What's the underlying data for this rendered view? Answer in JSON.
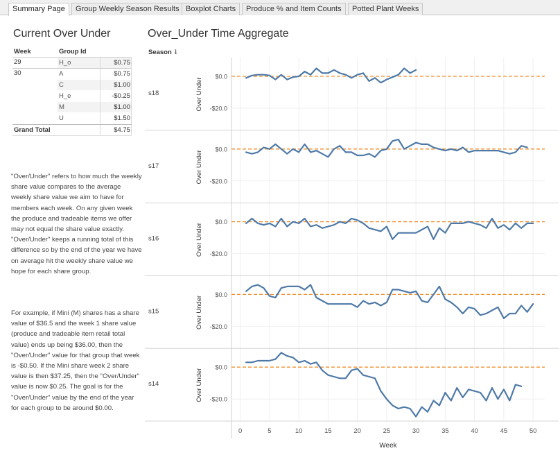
{
  "tabs": [
    {
      "label": "Summary Page",
      "active": true
    },
    {
      "label": "Group Weekly Season Results",
      "active": false
    },
    {
      "label": "Boxplot Charts",
      "active": false
    },
    {
      "label": "Produce % and Item Counts",
      "active": false
    },
    {
      "label": "Potted Plant Weeks",
      "active": false
    }
  ],
  "left_panel": {
    "title": "Current Over Under",
    "table": {
      "headers": {
        "week": "Week",
        "group": "Group Id"
      },
      "rows": [
        {
          "week": "29",
          "group": "H_o",
          "value": "$0.75"
        },
        {
          "week": "30",
          "group": "A",
          "value": "$0.75"
        },
        {
          "week": "",
          "group": "C",
          "value": "$1.00"
        },
        {
          "week": "",
          "group": "H_e",
          "value": "-$0.25"
        },
        {
          "week": "",
          "group": "M",
          "value": "$1.00"
        },
        {
          "week": "",
          "group": "U",
          "value": "$1.50"
        }
      ],
      "grand_total_label": "Grand Total",
      "grand_total_value": "$4.75"
    },
    "description_1": "\"Over/Under\" refers to how much the weekly share value compares to the average weekly share value we aim to have for members each week. On any given week the produce and tradeable items we offer may not equal the share value exactly. \"Over/Under\" keeps a running total of this difference so by the end of the year we have on average hit the weekly share value we hope for each share group.",
    "description_2": "For example, if Mini (M) shares has a share value of $36.5 and the week 1 share value (produce and tradeable item retail total value) ends up being $36.00, then the \"Over/Under\" value for that group that week is -$0.50. If the Mini share week 2 share value is then $37.25, then the \"Over/Under\" value is now $0.25. The goal is for the \"Over/Under\" value by the end of the year for each group to be around $0.00."
  },
  "chart_panel": {
    "title": "Over_Under Time Aggregate",
    "season_header": "Season",
    "info_icon": "info-icon"
  },
  "chart_data": {
    "type": "line",
    "title": "Over_Under Time Aggregate",
    "xlabel": "Week",
    "ylabel": "Over Under",
    "xlim": [
      -1.5,
      52
    ],
    "x_ticks": [
      0,
      5,
      10,
      15,
      20,
      25,
      30,
      35,
      40,
      45,
      50
    ],
    "y_ticks": [
      0,
      -20
    ],
    "y_tick_labels": [
      "$0.0",
      "-$20.0"
    ],
    "reference_line": 0,
    "line_color": "#4e79a7",
    "ref_color": "#f28e2b",
    "panels": [
      {
        "season": "s18",
        "ylim": [
          -30,
          12
        ],
        "x": [
          1,
          2,
          3,
          4,
          5,
          6,
          7,
          8,
          9,
          10,
          11,
          12,
          13,
          14,
          15,
          16,
          17,
          18,
          19,
          20,
          21,
          22,
          23,
          24,
          25,
          26,
          27,
          28,
          29,
          30
        ],
        "y": [
          -1,
          0.5,
          1,
          1,
          0.5,
          -2,
          1,
          -2,
          -0.5,
          0,
          3,
          1,
          5,
          2,
          2,
          4,
          2,
          1,
          -1,
          1,
          2,
          -3,
          -1,
          -4,
          -2,
          -0.5,
          1,
          5,
          2,
          4
        ]
      },
      {
        "season": "s17",
        "ylim": [
          -30,
          12
        ],
        "x": [
          1,
          2,
          3,
          4,
          5,
          6,
          7,
          8,
          9,
          10,
          11,
          12,
          13,
          14,
          15,
          16,
          17,
          18,
          19,
          20,
          21,
          22,
          23,
          24,
          25,
          26,
          27,
          28,
          29,
          30,
          31,
          32,
          33,
          34,
          35,
          36,
          37,
          38,
          39,
          40,
          41,
          42,
          43,
          44,
          45,
          46,
          47,
          48,
          49
        ],
        "y": [
          -2,
          -3,
          -2,
          1,
          0,
          3,
          0,
          -3,
          0,
          -2,
          3,
          -2,
          -1,
          -3,
          -5,
          0,
          2,
          -2,
          -2,
          -4,
          -4,
          -3,
          -5,
          -1,
          0,
          5,
          6,
          0,
          2,
          4,
          3,
          3,
          1,
          0,
          -1,
          0,
          -1,
          1,
          -2,
          -1,
          -1,
          -1,
          -1,
          -1,
          -2,
          -3,
          -2,
          2,
          1
        ],
        "y_fix": true
      },
      {
        "season": "s16",
        "ylim": [
          -30,
          12
        ],
        "x": [
          1,
          2,
          3,
          4,
          5,
          6,
          7,
          8,
          9,
          10,
          11,
          12,
          13,
          14,
          15,
          16,
          17,
          18,
          19,
          20,
          21,
          22,
          23,
          24,
          25,
          26,
          27,
          28,
          29,
          30,
          31,
          32,
          33,
          34,
          35,
          36,
          37,
          38,
          39,
          40,
          41,
          42,
          43,
          44,
          45,
          46,
          47,
          48,
          49,
          50
        ],
        "y": [
          -1,
          2,
          -1,
          -2,
          -1,
          -3,
          2,
          -3,
          0,
          -1,
          2,
          -3,
          -2,
          -4,
          -3,
          -2,
          0,
          -1,
          2,
          1,
          -1,
          -4,
          -5,
          -6,
          -3,
          -11,
          -7,
          -7,
          -7,
          -7,
          -5,
          -3,
          -11,
          -4,
          -7,
          -1,
          -1,
          -1,
          0,
          -1,
          -2,
          -4,
          2,
          -4,
          -2,
          -5,
          -1,
          -4,
          -1,
          -1
        ]
      },
      {
        "season": "s15",
        "ylim": [
          -30,
          12
        ],
        "x": [
          1,
          2,
          3,
          4,
          5,
          6,
          7,
          8,
          9,
          10,
          11,
          12,
          13,
          14,
          15,
          16,
          17,
          18,
          19,
          20,
          21,
          22,
          23,
          24,
          25,
          26,
          27,
          28,
          29,
          30,
          31,
          32,
          33,
          34,
          35,
          36,
          37,
          38,
          39,
          40,
          41,
          42,
          43,
          44,
          45,
          46,
          47,
          48,
          49,
          50
        ],
        "y": [
          2,
          5,
          6,
          4,
          -1,
          -2,
          4,
          5,
          5,
          5,
          3,
          6,
          -2,
          -4,
          -6,
          -6,
          -6,
          -6,
          -6,
          -8,
          -4,
          -6,
          -5,
          -7,
          -5,
          3,
          3,
          2,
          1,
          2,
          -4,
          -5,
          0,
          5,
          -3,
          -5,
          -8,
          -12,
          -8,
          -9,
          -13,
          -12,
          -10,
          -8,
          -15,
          -12,
          -12,
          -7,
          -11,
          -6
        ]
      },
      {
        "season": "s14",
        "ylim": [
          -30,
          12
        ],
        "x": [
          1,
          2,
          3,
          4,
          5,
          6,
          7,
          8,
          9,
          10,
          11,
          12,
          13,
          14,
          15,
          16,
          17,
          18,
          19,
          20,
          21,
          22,
          23,
          24,
          25,
          26,
          27,
          28,
          29,
          30,
          31,
          32,
          33,
          34,
          35,
          36,
          37,
          38,
          39,
          40,
          41,
          42,
          43,
          44,
          45,
          46,
          47,
          48
        ],
        "y": [
          3,
          3,
          4,
          4,
          4,
          5,
          9,
          7,
          6,
          3,
          4,
          2,
          3,
          -2,
          -5,
          -6,
          -7,
          -7,
          -2,
          -1,
          -5,
          -6,
          -7,
          -15,
          -20,
          -24,
          -26,
          -25,
          -26,
          -31,
          -25,
          -28,
          -21,
          -24,
          -16,
          -21,
          -13,
          -19,
          -14,
          -15,
          -16,
          -21,
          -13,
          -20,
          -14,
          -21,
          -11,
          -12
        ]
      }
    ]
  }
}
